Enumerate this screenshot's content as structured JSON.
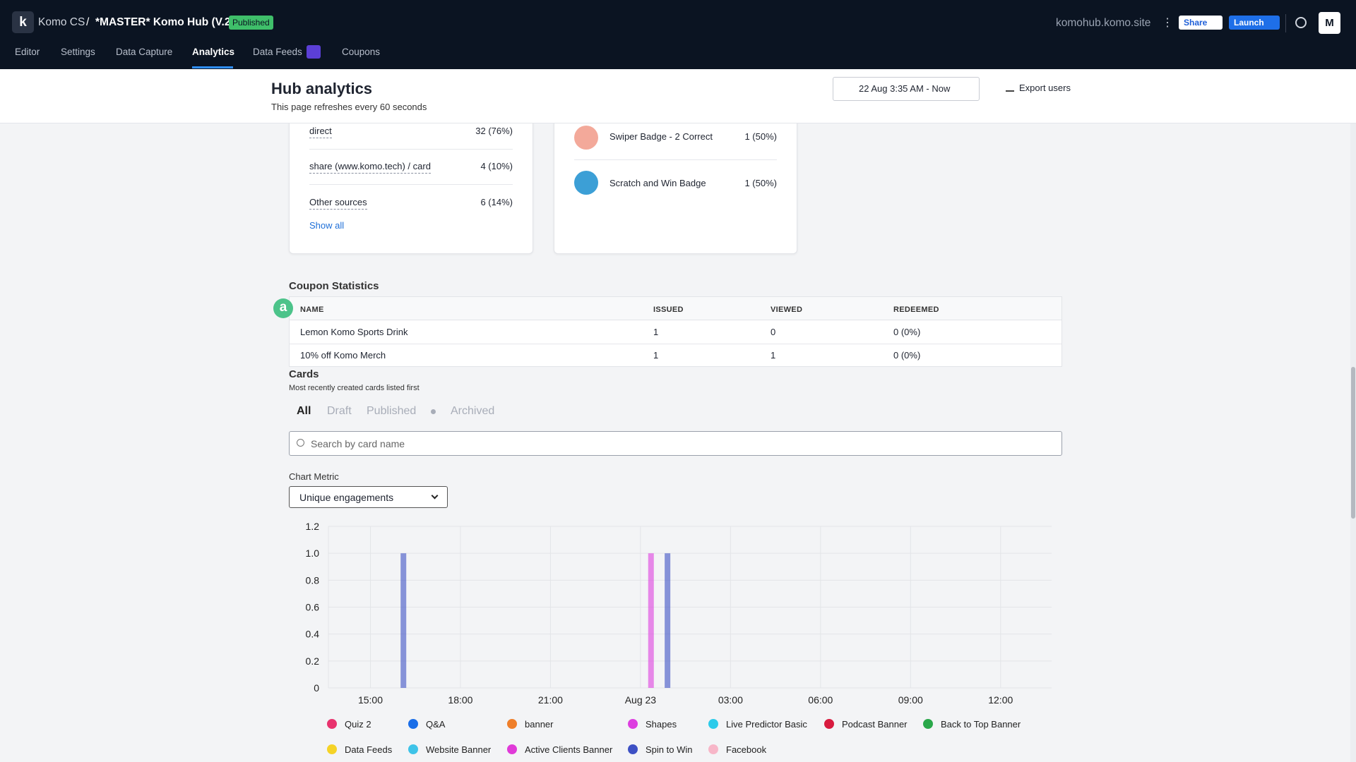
{
  "header": {
    "logo": "k",
    "org": "Komo CS",
    "separator": "/",
    "hub": "*MASTER* Komo Hub (V.2)",
    "status": "Published",
    "domain": "komohub.komo.site",
    "share": "Share",
    "launch": "Launch",
    "avatar": "M"
  },
  "nav": [
    "Editor",
    "Settings",
    "Data Capture",
    "Analytics",
    "Data Feeds",
    "Coupons"
  ],
  "page": {
    "title": "Hub analytics",
    "subtitle": "This page refreshes every 60 seconds",
    "date_range": "22 Aug 3:35 AM - Now",
    "export": "Export users"
  },
  "sources": {
    "rows": [
      {
        "name": "direct",
        "value": "32 (76%)"
      },
      {
        "name": "share (www.komo.tech) / card",
        "value": "4 (10%)"
      },
      {
        "name": "Other sources",
        "value": "6 (14%)"
      }
    ],
    "show_all": "Show all"
  },
  "badges": [
    {
      "name": "Swiper Badge - 2 Correct",
      "value": "1 (50%)"
    },
    {
      "name": "Scratch and Win Badge",
      "value": "1 (50%)"
    }
  ],
  "overlay": {
    "badge": "a"
  },
  "coupons": {
    "title": "Coupon Statistics",
    "columns": [
      "NAME",
      "ISSUED",
      "VIEWED",
      "REDEEMED"
    ],
    "rows": [
      [
        "Lemon Komo Sports Drink",
        "1",
        "0",
        "0 (0%)"
      ],
      [
        "10% off Komo Merch",
        "1",
        "1",
        "0 (0%)"
      ]
    ]
  },
  "cards": {
    "title": "Cards",
    "subtitle": "Most recently created cards listed first",
    "filters": [
      "All",
      "Draft",
      "Published",
      "Archived"
    ],
    "search": "Search by card name",
    "metric_label": "Chart Metric",
    "metric": "Unique engagements"
  },
  "chart_data": {
    "type": "bar",
    "xlim": [
      13.6,
      37.7
    ],
    "xticks": [
      {
        "value": 15,
        "label": "15:00"
      },
      {
        "value": 18,
        "label": "18:00"
      },
      {
        "value": 21,
        "label": "21:00"
      },
      {
        "value": 24,
        "label": "Aug 23"
      },
      {
        "value": 27,
        "label": "03:00"
      },
      {
        "value": 30,
        "label": "06:00"
      },
      {
        "value": 33,
        "label": "09:00"
      },
      {
        "value": 36,
        "label": "12:00"
      }
    ],
    "ylim": [
      0,
      1.2
    ],
    "yticks": [
      0,
      0.2,
      0.4,
      0.6,
      0.8,
      {
        "value": 1,
        "label": "1.0"
      },
      1.2
    ],
    "grid": true,
    "series": [
      {
        "name": "Quiz 2",
        "color": "#e8336e",
        "x": [],
        "values": []
      },
      {
        "name": "Q&A",
        "color": "#1a6ee8",
        "x": [],
        "values": []
      },
      {
        "name": "banner",
        "color": "#ef7f2a",
        "x": [],
        "values": []
      },
      {
        "name": "Shapes",
        "color": "#dd3ee0",
        "x": [
          24.35
        ],
        "values": [
          1
        ]
      },
      {
        "name": "Live Predictor Basic",
        "color": "#2ccbea",
        "x": [],
        "values": []
      },
      {
        "name": "Podcast Banner",
        "color": "#d81b3f",
        "x": [],
        "values": []
      },
      {
        "name": "Back to Top Banner",
        "color": "#2aa84a",
        "x": [],
        "values": []
      },
      {
        "name": "Data Feeds",
        "color": "#f5d327",
        "x": [],
        "values": []
      },
      {
        "name": "Website Banner",
        "color": "#3ec3e8",
        "x": [],
        "values": []
      },
      {
        "name": "Active Clients Banner",
        "color": "#e03ad8",
        "x": [],
        "values": []
      },
      {
        "name": "Spin to Win",
        "color": "#3d50c4",
        "x": [
          16.1,
          24.9
        ],
        "values": [
          1,
          1
        ]
      },
      {
        "name": "Facebook",
        "color": "#f7b6c8",
        "x": [],
        "values": []
      }
    ]
  }
}
